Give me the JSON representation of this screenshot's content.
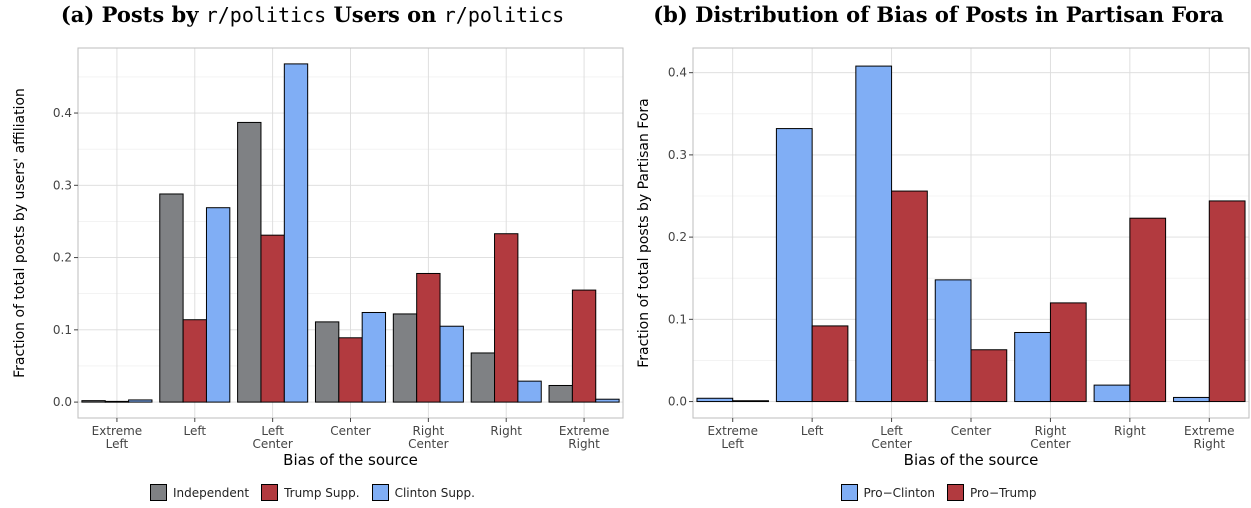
{
  "panels": {
    "a": {
      "title_prefix": "(a) Posts by ",
      "title_mono1": "r/politics",
      "title_mid": " Users on ",
      "title_mono2": "r/politics"
    },
    "b": {
      "title": "(b) Distribution of Bias of Posts in Partisan Fora"
    }
  },
  "chart_data": [
    {
      "type": "bar",
      "title": "(a) Posts by r/politics Users on r/politics",
      "xlabel": "Bias of the source",
      "ylabel": "Fraction of total posts by users' affiliation",
      "categories": [
        "Extreme\nLeft",
        "Left",
        "Left\nCenter",
        "Center",
        "Right\nCenter",
        "Right",
        "Extreme\nRight"
      ],
      "ylim": [
        -0.022,
        0.49
      ],
      "yticks": [
        0.0,
        0.1,
        0.2,
        0.3,
        0.4
      ],
      "ytick_labels": [
        "0.0",
        "0.1",
        "0.2",
        "0.3",
        "0.4"
      ],
      "grid": true,
      "legend_position": "bottom",
      "series": [
        {
          "name": "Independent",
          "color": "#7f8184",
          "values": [
            0.002,
            0.288,
            0.387,
            0.111,
            0.122,
            0.068,
            0.023
          ]
        },
        {
          "name": "Trump Supp.",
          "color": "#b23a3f",
          "values": [
            0.001,
            0.114,
            0.231,
            0.089,
            0.178,
            0.233,
            0.155
          ]
        },
        {
          "name": "Clinton Supp.",
          "color": "#80aef5",
          "values": [
            0.003,
            0.269,
            0.468,
            0.124,
            0.105,
            0.029,
            0.004
          ]
        }
      ]
    },
    {
      "type": "bar",
      "title": "(b) Distribution of Bias of Posts in Partisan Fora",
      "xlabel": "Bias of the source",
      "ylabel": "Fraction of total posts by Partisan Fora",
      "categories": [
        "Extreme\nLeft",
        "Left",
        "Left\nCenter",
        "Center",
        "Right\nCenter",
        "Right",
        "Extreme\nRight"
      ],
      "ylim": [
        -0.02,
        0.43
      ],
      "yticks": [
        0.0,
        0.1,
        0.2,
        0.3,
        0.4
      ],
      "ytick_labels": [
        "0.0",
        "0.1",
        "0.2",
        "0.3",
        "0.4"
      ],
      "grid": true,
      "legend_position": "bottom",
      "series": [
        {
          "name": "Pro−Clinton",
          "color": "#80aef5",
          "values": [
            0.004,
            0.332,
            0.408,
            0.148,
            0.084,
            0.02,
            0.005
          ]
        },
        {
          "name": "Pro−Trump",
          "color": "#b23a3f",
          "values": [
            0.001,
            0.092,
            0.256,
            0.063,
            0.12,
            0.223,
            0.244
          ]
        }
      ]
    }
  ]
}
